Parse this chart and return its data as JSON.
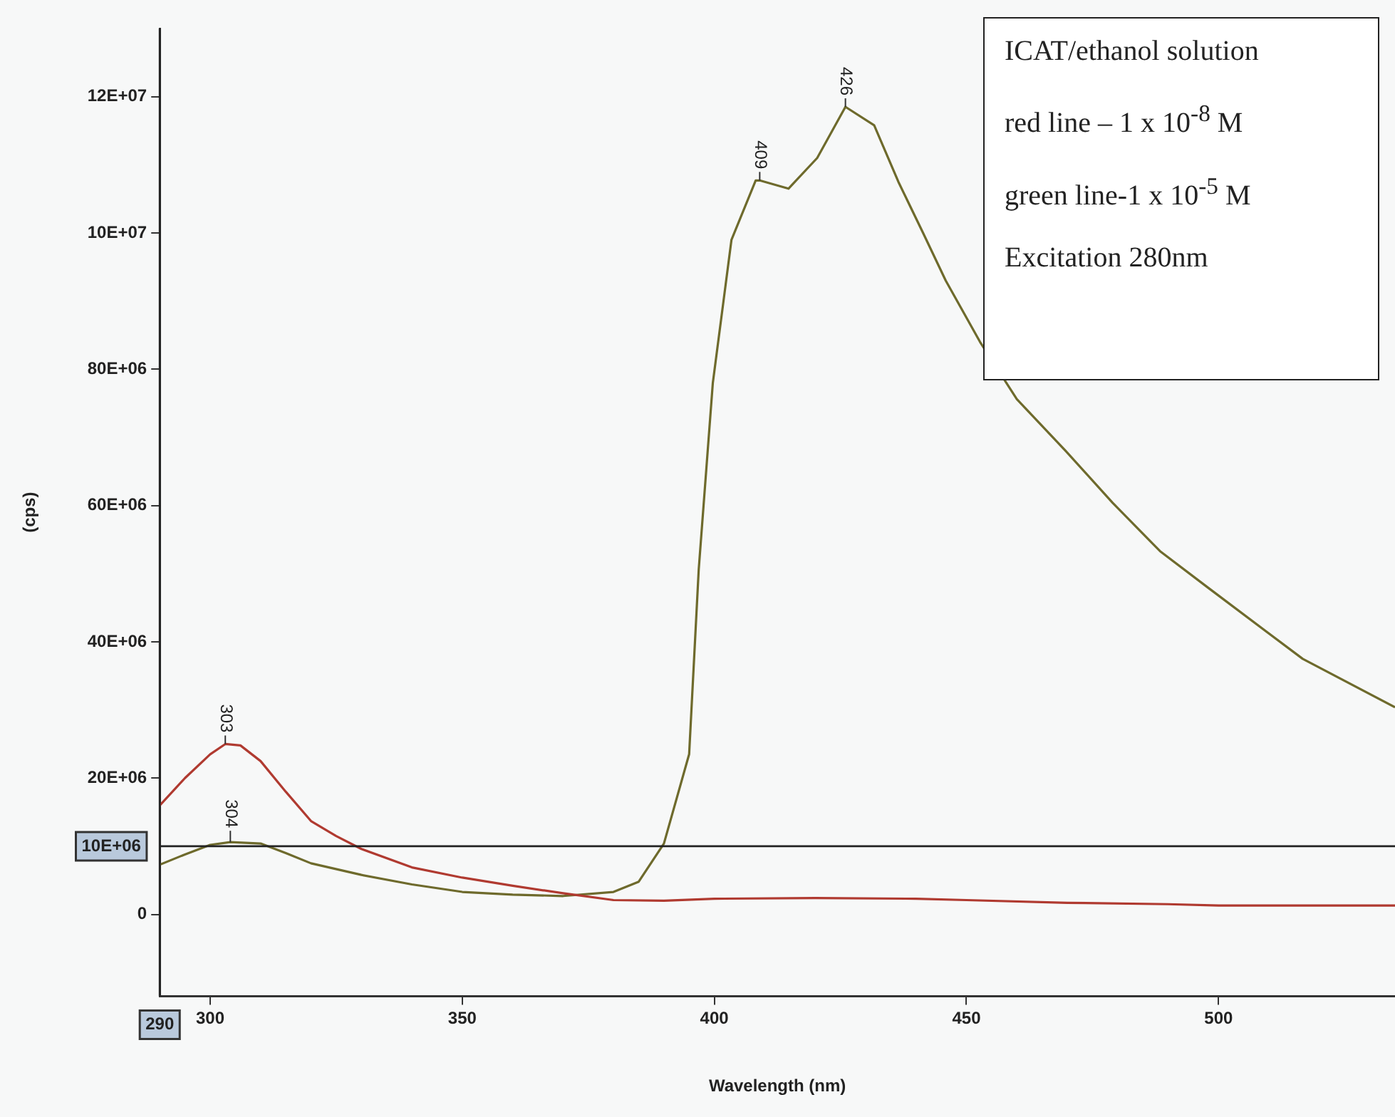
{
  "chart_data": {
    "type": "line",
    "xlabel": "Wavelength (nm)",
    "ylabel": "(cps)",
    "xlim": [
      290,
      535
    ],
    "xticks": [
      300,
      350,
      400,
      450,
      500
    ],
    "ylim": [
      -12000000,
      130000000
    ],
    "yticks": [
      {
        "value": 0,
        "label": "0"
      },
      {
        "value": 20000000,
        "label": "20E+06"
      },
      {
        "value": 40000000,
        "label": "40E+06"
      },
      {
        "value": 60000000,
        "label": "60E+06"
      },
      {
        "value": 80000000,
        "label": "80E+06"
      },
      {
        "value": 100000000,
        "label": "10E+07"
      },
      {
        "value": 120000000,
        "label": "12E+07"
      }
    ],
    "grid": false,
    "legend": false,
    "marker": "none",
    "line_style": "solid",
    "series": [
      {
        "color": "#b03a30",
        "x": [
          290,
          295,
          300,
          303,
          306,
          310,
          315,
          320,
          325,
          330,
          340,
          350,
          360,
          370,
          380,
          390,
          400,
          420,
          440,
          450,
          470,
          490,
          500,
          520,
          535
        ],
        "values": [
          16000000,
          20000000,
          23500000,
          25000000,
          24800000,
          22500000,
          18000000,
          13700000,
          11500000,
          9600000,
          6900000,
          5400000,
          4200000,
          3100000,
          2100000,
          2000000,
          2300000,
          2400000,
          2300000,
          2100000,
          1700000,
          1500000,
          1300000,
          1300000,
          1300000
        ]
      },
      {
        "color": "#6e6a2c",
        "x": [
          290,
          295,
          300,
          304,
          310,
          315,
          320,
          330,
          340,
          350,
          360,
          370,
          380,
          385,
          390,
          395,
          396.9,
          399.7,
          403.4,
          408.2,
          409,
          414.7,
          420.4,
          426,
          431.7,
          436.5,
          441.4,
          445.9,
          452.7,
          460,
          469.7,
          479,
          488.4,
          498,
          516.7,
          535
        ],
        "values": [
          7300000,
          8800000,
          10200000,
          10600000,
          10400000,
          9000000,
          7500000,
          5800000,
          4400000,
          3300000,
          2900000,
          2700000,
          3300000,
          4800000,
          10400000,
          23500000,
          50600000,
          78000000,
          99000000,
          107700000,
          107700000,
          106500000,
          111000000,
          118500000,
          115800000,
          107500000,
          100000000,
          93000000,
          84000000,
          75600000,
          68000000,
          60400000,
          53300000,
          47900000,
          37500000,
          30400000
        ]
      }
    ],
    "ref_lines": [
      {
        "axis": "y",
        "value": 10000000,
        "label": "10E+06",
        "color": "#222222"
      },
      {
        "axis": "x",
        "value": 290,
        "label": "290",
        "color": "#222222"
      }
    ],
    "annotations": [
      {
        "text": "303",
        "x": 303,
        "y": 25000000
      },
      {
        "text": "304",
        "x": 304,
        "y": 10600000
      },
      {
        "text": "409",
        "x": 409,
        "y": 107700000
      },
      {
        "text": "426",
        "x": 426,
        "y": 118500000
      },
      "ICAT/ethanol solution",
      "red line – 1 x 10$^{-8}$ M",
      "green line-1 x 10$^{-5}$  M",
      "Excitation 280nm"
    ]
  }
}
